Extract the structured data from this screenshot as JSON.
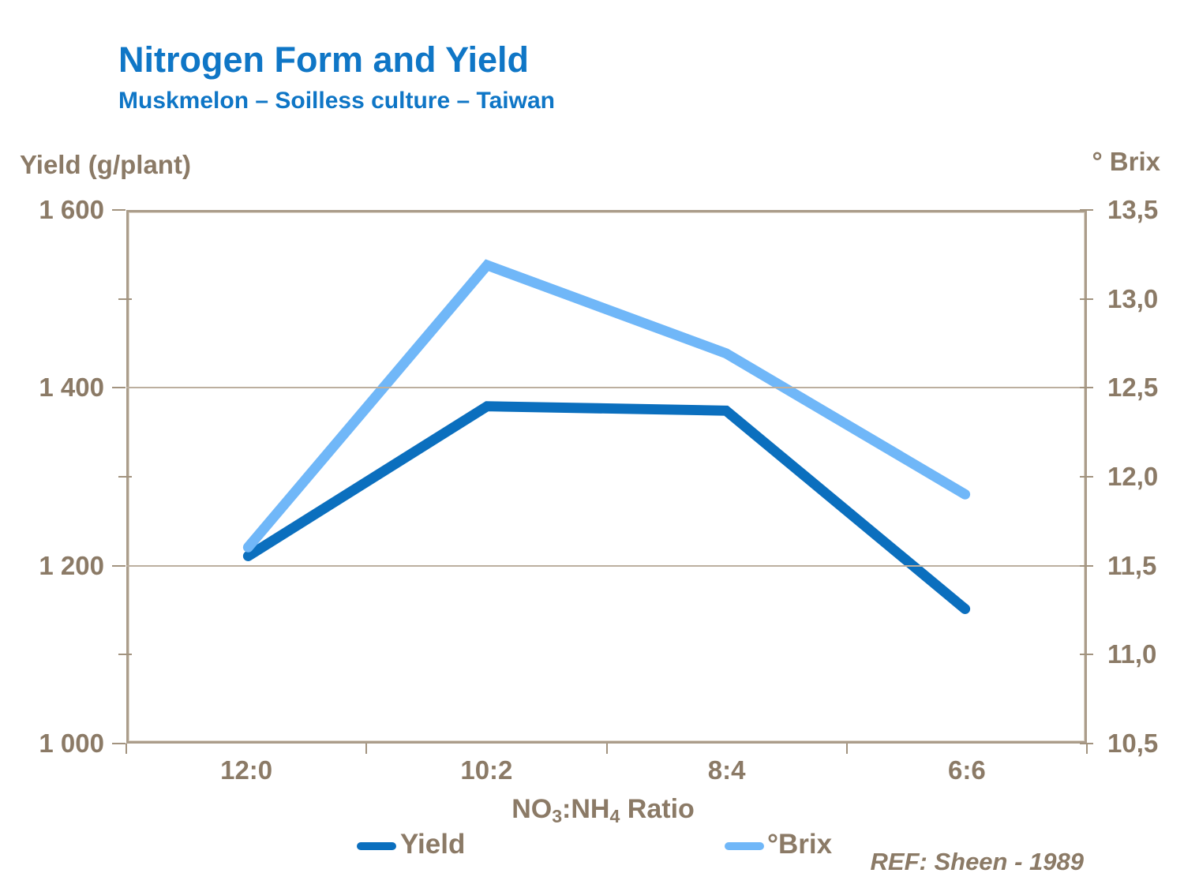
{
  "header": {
    "title": "Nitrogen Form and Yield",
    "subtitle": "Muskmelon – Soilless culture – Taiwan"
  },
  "left_axis_label": "Yield (g/plant)",
  "right_axis_label": "° Brix",
  "x_axis_title": {
    "p1": "NO",
    "sub1": "3",
    "p2": ":NH",
    "sub2": "4",
    "p3": " Ratio"
  },
  "footer": {
    "reference": "REF: Sheen - 1989"
  },
  "legend": [
    {
      "label": "Yield",
      "color": "#0B6FBE"
    },
    {
      "label": "°Brix",
      "color": "#70B7F8"
    }
  ],
  "colors": {
    "title_blue": "#0F76C6",
    "text_brown": "#8B7A66",
    "axis_tan": "#AB9D8B",
    "yield_line": "#0B6FBE",
    "brix_line": "#70B7F8"
  },
  "chart_data": {
    "type": "line",
    "title": "Nitrogen Form and Yield",
    "subtitle": "Muskmelon – Soilless culture – Taiwan",
    "xlabel": "NO3:NH4 Ratio",
    "categories": [
      "12:0",
      "10:2",
      "8:4",
      "6:6"
    ],
    "series": [
      {
        "name": "Yield",
        "axis": "left",
        "color": "#0B6FBE",
        "values": [
          1210,
          1380,
          1375,
          1150
        ]
      },
      {
        "name": "°Brix",
        "axis": "right",
        "color": "#70B7F8",
        "values": [
          11.6,
          13.2,
          12.7,
          11.9
        ]
      }
    ],
    "left_axis": {
      "label": "Yield (g/plant)",
      "ylim": [
        1000,
        1600
      ],
      "tick_values": [
        1600,
        1400,
        1200,
        1000
      ],
      "tick_labels": [
        "1 600",
        "1 400",
        "1 200",
        "1 000"
      ],
      "minor_tick_values": [
        1500,
        1300,
        1100
      ]
    },
    "right_axis": {
      "label": "° Brix",
      "ylim": [
        10.5,
        13.5
      ],
      "tick_values": [
        13.5,
        13.0,
        12.5,
        12.0,
        11.5,
        11.0,
        10.5
      ],
      "tick_labels": [
        "13,5",
        "13,0",
        "12,5",
        "12,0",
        "11,5",
        "11,0",
        "10,5"
      ]
    },
    "gridline_values": [
      1400,
      1200
    ],
    "grid": "horizontal-major-only",
    "legend_position": "bottom"
  }
}
